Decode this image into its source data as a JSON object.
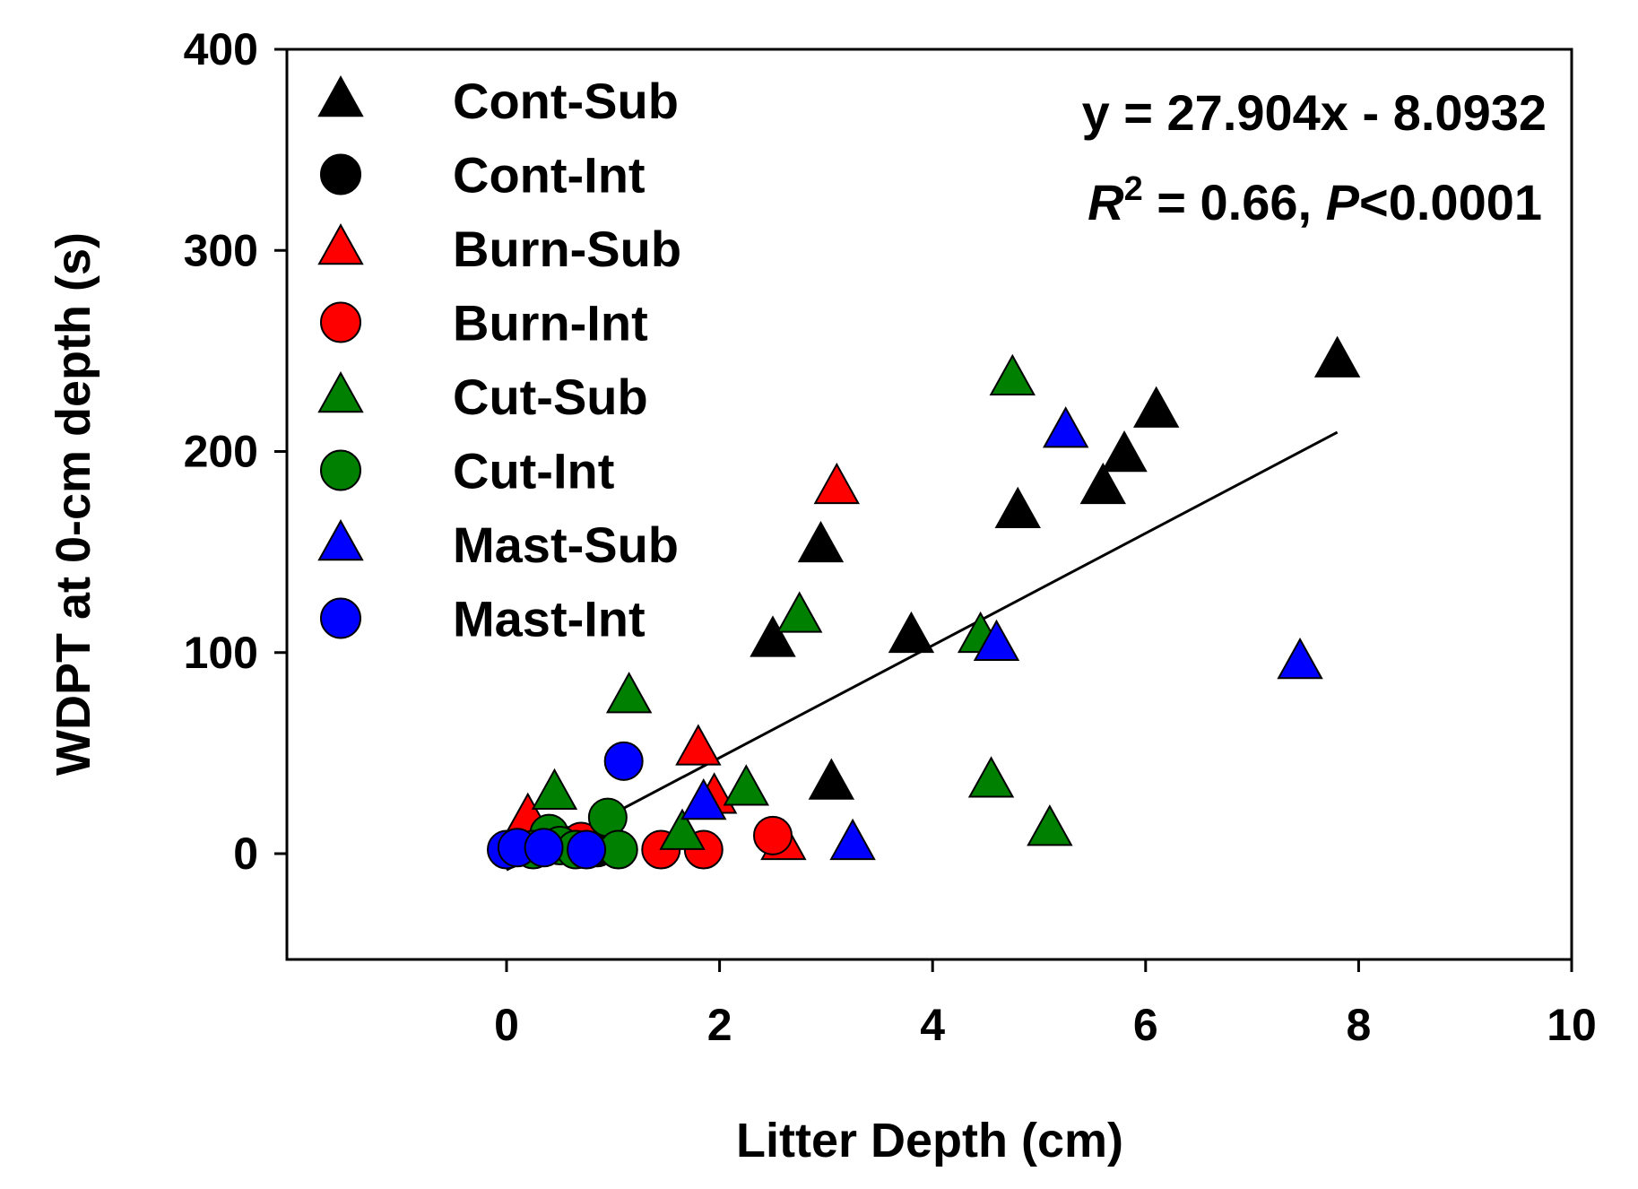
{
  "chart_data": {
    "type": "scatter",
    "title": "",
    "xlabel": "Litter Depth (cm)",
    "ylabel": "WDPT at 0-cm depth (s)",
    "xlim": [
      -2,
      10
    ],
    "ylim": [
      -50,
      400
    ],
    "xticks": [
      0,
      2,
      4,
      6,
      8,
      10
    ],
    "yticks": [
      0,
      100,
      200,
      300,
      400
    ],
    "legend_position": "top-left",
    "series": [
      {
        "name": "Cont-Sub",
        "marker": "triangle",
        "color": "#000000",
        "points": [
          [
            7.8,
            245
          ],
          [
            6.1,
            220
          ],
          [
            5.8,
            198
          ],
          [
            5.6,
            182
          ],
          [
            4.8,
            170
          ],
          [
            2.95,
            153
          ],
          [
            2.5,
            106
          ],
          [
            3.8,
            108
          ],
          [
            3.05,
            35
          ]
        ]
      },
      {
        "name": "Cont-Int",
        "marker": "circle",
        "color": "#000000",
        "points": [
          [
            0.8,
            3
          ],
          [
            0.85,
            3
          ],
          [
            0.6,
            4
          ]
        ]
      },
      {
        "name": "Burn-Sub",
        "marker": "triangle",
        "color": "#ff0000",
        "points": [
          [
            3.1,
            182
          ],
          [
            1.8,
            52
          ],
          [
            1.95,
            28
          ],
          [
            2.6,
            5
          ],
          [
            0.2,
            18
          ]
        ]
      },
      {
        "name": "Burn-Int",
        "marker": "circle",
        "color": "#ff0000",
        "points": [
          [
            2.5,
            9
          ],
          [
            1.45,
            2
          ],
          [
            1.85,
            2
          ],
          [
            0.7,
            6
          ]
        ]
      },
      {
        "name": "Cut-Sub",
        "marker": "triangle",
        "color": "#008000",
        "points": [
          [
            4.75,
            236
          ],
          [
            2.75,
            118
          ],
          [
            4.45,
            108
          ],
          [
            1.15,
            78
          ],
          [
            0.45,
            30
          ],
          [
            2.25,
            32
          ],
          [
            4.55,
            36
          ],
          [
            5.1,
            12
          ],
          [
            1.65,
            10
          ]
        ]
      },
      {
        "name": "Cut-Int",
        "marker": "circle",
        "color": "#008000",
        "points": [
          [
            0.95,
            18
          ],
          [
            0.4,
            10
          ],
          [
            0.5,
            4
          ],
          [
            1.05,
            2
          ],
          [
            0.25,
            2
          ],
          [
            0.65,
            2
          ]
        ]
      },
      {
        "name": "Mast-Sub",
        "marker": "triangle",
        "color": "#0000ff",
        "points": [
          [
            5.25,
            210
          ],
          [
            7.45,
            95
          ],
          [
            4.6,
            104
          ],
          [
            1.85,
            25
          ],
          [
            3.25,
            5
          ]
        ]
      },
      {
        "name": "Mast-Int",
        "marker": "circle",
        "color": "#0000ff",
        "points": [
          [
            1.1,
            46
          ],
          [
            0.0,
            2
          ],
          [
            0.1,
            3
          ],
          [
            0.35,
            3
          ],
          [
            0.75,
            2
          ]
        ]
      }
    ],
    "regression": {
      "equation": "y = 27.904x - 8.0932",
      "r2_symbol": "R",
      "r2_exp": "2",
      "r2_value": " = 0.66, ",
      "p_symbol": "P",
      "p_value": "<0.0001",
      "slope": 27.904,
      "intercept": -8.0932,
      "x_range": [
        0,
        7.8
      ]
    }
  }
}
